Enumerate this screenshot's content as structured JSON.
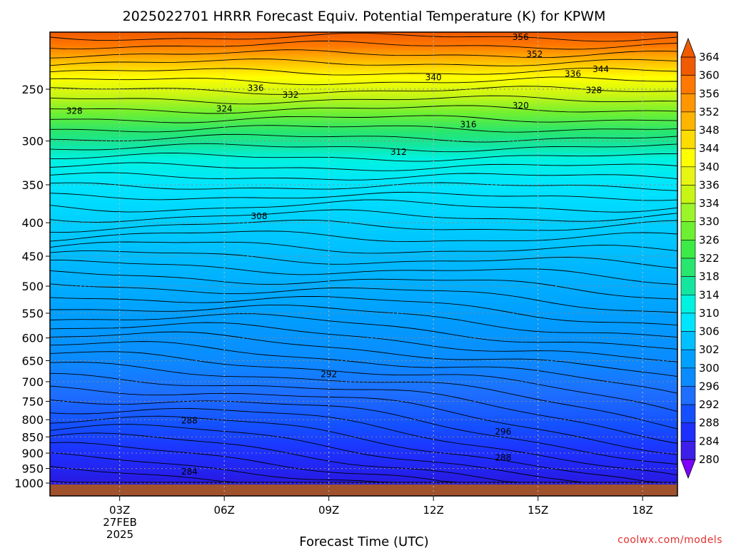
{
  "chart_data": {
    "type": "heatmap",
    "title": "2025022701 HRRR Forecast Equiv. Potential Temperature (K) for KPWM",
    "xlabel": "Forecast Time (UTC)",
    "ylabel": "",
    "x_ticks": [
      {
        "hour": 3,
        "label": "03Z"
      },
      {
        "hour": 6,
        "label": "06Z"
      },
      {
        "hour": 9,
        "label": "09Z"
      },
      {
        "hour": 12,
        "label": "12Z"
      },
      {
        "hour": 15,
        "label": "15Z"
      },
      {
        "hour": 18,
        "label": "18Z"
      }
    ],
    "x_date_label": [
      "27FEB",
      "2025"
    ],
    "xlim": [
      1,
      19
    ],
    "y_axis": "pressure (hPa), decreasing upward",
    "y_ticks": [
      250,
      300,
      350,
      400,
      450,
      500,
      550,
      600,
      650,
      700,
      750,
      800,
      850,
      900,
      950,
      1000
    ],
    "ylim": [
      1000,
      200
    ],
    "grid": true,
    "colorbar": {
      "labels": [
        280,
        284,
        288,
        292,
        296,
        300,
        302,
        306,
        310,
        314,
        318,
        322,
        326,
        330,
        334,
        336,
        340,
        344,
        348,
        352,
        356,
        360,
        364
      ],
      "colors": [
        "#7f00ff",
        "#3c20e8",
        "#1e30ff",
        "#1450ff",
        "#1e6eff",
        "#0a8cff",
        "#00a0ff",
        "#00c0ff",
        "#00e5ff",
        "#00f2e0",
        "#14e6a0",
        "#28e66e",
        "#3ceb46",
        "#6ef032",
        "#9bf528",
        "#c8f514",
        "#e6f514",
        "#ffff00",
        "#ffdc00",
        "#ffb400",
        "#ff9600",
        "#ff7800",
        "#f05a00"
      ],
      "extends": "both"
    },
    "contour_labels": [
      {
        "value": "356",
        "hour": 14.5,
        "p": 208
      },
      {
        "value": "352",
        "hour": 14.9,
        "p": 221
      },
      {
        "value": "344",
        "hour": 16.8,
        "p": 233
      },
      {
        "value": "336",
        "hour": 16.0,
        "p": 237
      },
      {
        "value": "340",
        "hour": 12.0,
        "p": 240
      },
      {
        "value": "336",
        "hour": 6.9,
        "p": 249
      },
      {
        "value": "332",
        "hour": 7.9,
        "p": 255
      },
      {
        "value": "328",
        "hour": 16.6,
        "p": 251
      },
      {
        "value": "328",
        "hour": 1.7,
        "p": 270
      },
      {
        "value": "324",
        "hour": 6.0,
        "p": 268
      },
      {
        "value": "320",
        "hour": 14.5,
        "p": 265
      },
      {
        "value": "316",
        "hour": 13.0,
        "p": 283
      },
      {
        "value": "312",
        "hour": 11.0,
        "p": 312
      },
      {
        "value": "308",
        "hour": 7.0,
        "p": 391
      },
      {
        "value": "292",
        "hour": 9.0,
        "p": 682
      },
      {
        "value": "296",
        "hour": 14.0,
        "p": 835
      },
      {
        "value": "288",
        "hour": 5.0,
        "p": 803
      },
      {
        "value": "288",
        "hour": 14.0,
        "p": 915
      },
      {
        "value": "284",
        "hour": 5.0,
        "p": 961
      }
    ],
    "credit": "coolwx.com/models"
  }
}
